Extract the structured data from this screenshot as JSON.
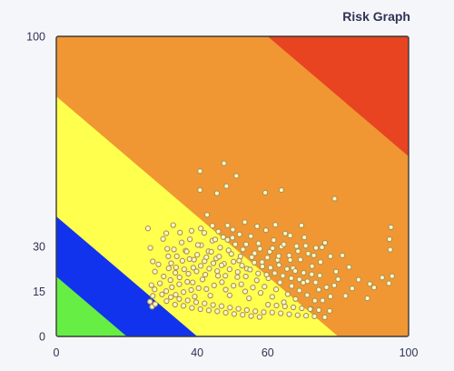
{
  "app": {
    "title": "Risk Graph"
  },
  "chart_data": {
    "type": "scatter",
    "title": "Risk Graph",
    "xlabel": "",
    "ylabel": "",
    "xlim": [
      0,
      100
    ],
    "ylim": [
      0,
      100
    ],
    "x_ticks": [
      "0",
      "40",
      "60",
      "100"
    ],
    "y_ticks": [
      "0",
      "15",
      "30",
      "100"
    ],
    "x_tick_values": [
      0,
      40,
      60,
      100
    ],
    "y_tick_values": [
      0,
      15,
      30,
      100
    ],
    "grid": false,
    "background_zones": [
      {
        "name": "green",
        "color": "#66ee44",
        "upper_sum": 20
      },
      {
        "name": "blue",
        "color": "#1133ee",
        "upper_sum": 40
      },
      {
        "name": "yellow",
        "color": "#ffff4d",
        "upper_sum": 80
      },
      {
        "name": "orange",
        "color": "#f09733",
        "upper_sum": 160
      },
      {
        "name": "red",
        "color": "#e84422",
        "upper_sum": 200
      }
    ],
    "marker_color": "#fff6c8",
    "marker_edge": "#a7924f",
    "points": [
      [
        40.8,
        55.1
      ],
      [
        47.6,
        57.7
      ],
      [
        51.1,
        53.5
      ],
      [
        48.3,
        50.1
      ],
      [
        40.8,
        48.8
      ],
      [
        45.6,
        47.7
      ],
      [
        59.3,
        47.9
      ],
      [
        63.9,
        48.8
      ],
      [
        79.0,
        45.9
      ],
      [
        42.8,
        40.5
      ],
      [
        26.0,
        36.0
      ],
      [
        26.7,
        29.5
      ],
      [
        27.4,
        25.0
      ],
      [
        28.0,
        21.6
      ],
      [
        27.9,
        15.7
      ],
      [
        27.0,
        17.1
      ],
      [
        27.4,
        13.5
      ],
      [
        26.6,
        11.6
      ],
      [
        27.2,
        9.9
      ],
      [
        28.1,
        10.8
      ],
      [
        29.4,
        17.7
      ],
      [
        31.2,
        15.1
      ],
      [
        32.8,
        16.4
      ],
      [
        33.9,
        13.9
      ],
      [
        34.9,
        17.4
      ],
      [
        36.1,
        14.8
      ],
      [
        37.2,
        18.2
      ],
      [
        38.3,
        15.5
      ],
      [
        39.3,
        13.3
      ],
      [
        40.4,
        16.1
      ],
      [
        41.5,
        19.0
      ],
      [
        42.6,
        15.8
      ],
      [
        43.7,
        13.6
      ],
      [
        44.8,
        17.0
      ],
      [
        45.9,
        20.2
      ],
      [
        47.0,
        18.1
      ],
      [
        48.1,
        15.6
      ],
      [
        49.2,
        13.7
      ],
      [
        50.3,
        16.9
      ],
      [
        51.4,
        19.8
      ],
      [
        52.5,
        17.4
      ],
      [
        53.6,
        15.0
      ],
      [
        54.7,
        12.7
      ],
      [
        55.8,
        16.3
      ],
      [
        56.9,
        18.7
      ],
      [
        58.0,
        14.5
      ],
      [
        59.1,
        16.6
      ],
      [
        60.2,
        19.4
      ],
      [
        61.3,
        13.2
      ],
      [
        62.4,
        15.7
      ],
      [
        63.5,
        18.0
      ],
      [
        64.6,
        11.4
      ],
      [
        65.7,
        14.1
      ],
      [
        66.8,
        16.8
      ],
      [
        67.9,
        12.5
      ],
      [
        69.0,
        15.3
      ],
      [
        70.1,
        17.9
      ],
      [
        71.2,
        13.8
      ],
      [
        72.3,
        9.2
      ],
      [
        73.4,
        11.9
      ],
      [
        74.5,
        15.6
      ],
      [
        75.6,
        12.0
      ],
      [
        76.7,
        16.4
      ],
      [
        77.8,
        13.3
      ],
      [
        78.9,
        17.0
      ],
      [
        80.0,
        19.1
      ],
      [
        82.1,
        13.5
      ],
      [
        84.0,
        16.0
      ],
      [
        85.8,
        18.9
      ],
      [
        88.3,
        12.7
      ],
      [
        90.2,
        16.3
      ],
      [
        92.5,
        19.6
      ],
      [
        94.4,
        17.7
      ],
      [
        95.3,
        20.1
      ],
      [
        94.8,
        28.9
      ],
      [
        94.6,
        32.4
      ],
      [
        95.0,
        36.4
      ],
      [
        89.0,
        17.5
      ],
      [
        30.3,
        32.5
      ],
      [
        31.5,
        29.2
      ],
      [
        32.6,
        24.4
      ],
      [
        33.4,
        29.0
      ],
      [
        34.2,
        26.7
      ],
      [
        35.6,
        31.3
      ],
      [
        36.7,
        28.6
      ],
      [
        37.8,
        25.8
      ],
      [
        38.9,
        22.9
      ],
      [
        40.0,
        27.2
      ],
      [
        41.1,
        30.4
      ],
      [
        42.1,
        25.1
      ],
      [
        43.2,
        28.4
      ],
      [
        44.3,
        31.9
      ],
      [
        45.4,
        26.0
      ],
      [
        46.5,
        29.6
      ],
      [
        47.6,
        24.2
      ],
      [
        48.6,
        32.2
      ],
      [
        49.7,
        27.5
      ],
      [
        50.8,
        30.7
      ],
      [
        51.9,
        25.3
      ],
      [
        53.0,
        29.0
      ],
      [
        54.1,
        22.6
      ],
      [
        55.2,
        33.4
      ],
      [
        56.3,
        27.7
      ],
      [
        57.4,
        31.0
      ],
      [
        58.4,
        24.8
      ],
      [
        59.5,
        35.4
      ],
      [
        60.6,
        28.2
      ],
      [
        61.7,
        32.1
      ],
      [
        62.8,
        25.5
      ],
      [
        63.9,
        29.9
      ],
      [
        65.0,
        34.3
      ],
      [
        66.1,
        27.0
      ],
      [
        67.2,
        22.8
      ],
      [
        68.2,
        30.1
      ],
      [
        69.3,
        25.6
      ],
      [
        70.4,
        33.0
      ],
      [
        71.5,
        27.6
      ],
      [
        72.6,
        23.4
      ],
      [
        73.7,
        29.5
      ],
      [
        75.0,
        24.8
      ],
      [
        76.3,
        31.2
      ],
      [
        77.8,
        26.7
      ],
      [
        79.4,
        21.6
      ],
      [
        81.2,
        27.0
      ],
      [
        83.1,
        23.1
      ],
      [
        69.6,
        37.0
      ],
      [
        66.4,
        33.6
      ],
      [
        62.2,
        37.2
      ],
      [
        57.0,
        36.7
      ],
      [
        53.5,
        38.1
      ],
      [
        50.1,
        35.6
      ],
      [
        48.6,
        37.0
      ],
      [
        44.3,
        36.9
      ],
      [
        41.0,
        36.0
      ],
      [
        37.9,
        32.4
      ],
      [
        35.1,
        34.6
      ],
      [
        33.2,
        37.1
      ],
      [
        31.2,
        34.4
      ],
      [
        29.0,
        24.0
      ],
      [
        30.5,
        20.0
      ],
      [
        31.9,
        22.7
      ],
      [
        32.4,
        18.8
      ],
      [
        33.8,
        21.2
      ],
      [
        35.0,
        19.7
      ],
      [
        36.3,
        22.4
      ],
      [
        37.5,
        20.9
      ],
      [
        38.7,
        18.0
      ],
      [
        39.8,
        21.7
      ],
      [
        41.0,
        23.5
      ],
      [
        42.3,
        20.6
      ],
      [
        43.4,
        22.6
      ],
      [
        44.6,
        24.4
      ],
      [
        45.7,
        21.8
      ],
      [
        46.9,
        23.7
      ],
      [
        48.0,
        20.2
      ],
      [
        49.2,
        22.4
      ],
      [
        50.3,
        24.9
      ],
      [
        51.5,
        21.5
      ],
      [
        52.7,
        23.6
      ],
      [
        53.8,
        20.0
      ],
      [
        55.0,
        22.3
      ],
      [
        56.2,
        24.6
      ],
      [
        57.3,
        21.0
      ],
      [
        58.5,
        23.3
      ],
      [
        59.7,
        20.6
      ],
      [
        60.8,
        22.9
      ],
      [
        62.0,
        21.1
      ],
      [
        63.2,
        23.8
      ],
      [
        64.3,
        20.2
      ],
      [
        65.5,
        22.5
      ],
      [
        66.7,
        19.4
      ],
      [
        67.8,
        21.8
      ],
      [
        69.0,
        19.0
      ],
      [
        70.2,
        21.2
      ],
      [
        71.3,
        18.4
      ],
      [
        72.5,
        20.7
      ],
      [
        73.6,
        18.0
      ],
      [
        74.8,
        20.3
      ],
      [
        30.0,
        14.0
      ],
      [
        31.3,
        11.8
      ],
      [
        32.5,
        13.1
      ],
      [
        33.7,
        10.6
      ],
      [
        34.9,
        12.5
      ],
      [
        36.1,
        10.2
      ],
      [
        37.3,
        12.0
      ],
      [
        38.5,
        9.5
      ],
      [
        39.7,
        11.4
      ],
      [
        40.9,
        9.1
      ],
      [
        42.1,
        11.0
      ],
      [
        43.3,
        8.7
      ],
      [
        44.5,
        10.5
      ],
      [
        45.7,
        8.4
      ],
      [
        46.9,
        10.1
      ],
      [
        48.1,
        7.9
      ],
      [
        49.3,
        9.6
      ],
      [
        50.5,
        7.5
      ],
      [
        51.7,
        9.2
      ],
      [
        52.9,
        7.2
      ],
      [
        54.1,
        8.8
      ],
      [
        55.3,
        6.8
      ],
      [
        56.5,
        8.4
      ],
      [
        57.7,
        6.5
      ],
      [
        58.9,
        8.1
      ],
      [
        60.1,
        10.6
      ],
      [
        61.3,
        8.0
      ],
      [
        62.5,
        10.3
      ],
      [
        63.7,
        7.7
      ],
      [
        64.9,
        10.0
      ],
      [
        66.1,
        7.4
      ],
      [
        67.3,
        9.7
      ],
      [
        68.5,
        7.1
      ],
      [
        69.7,
        9.4
      ],
      [
        70.9,
        6.9
      ],
      [
        72.1,
        9.1
      ],
      [
        73.3,
        6.7
      ],
      [
        74.5,
        8.8
      ],
      [
        76.2,
        6.4
      ],
      [
        77.6,
        8.5
      ],
      [
        42.6,
        26.4
      ],
      [
        44.0,
        28.2
      ],
      [
        45.1,
        32.3
      ],
      [
        46.2,
        26.6
      ],
      [
        47.4,
        33.1
      ],
      [
        48.9,
        28.7
      ],
      [
        50.0,
        32.9
      ],
      [
        52.3,
        26.7
      ],
      [
        53.9,
        30.7
      ],
      [
        55.5,
        26.4
      ],
      [
        57.8,
        29.2
      ],
      [
        59.9,
        26.3
      ],
      [
        61.4,
        29.4
      ],
      [
        63.1,
        26.8
      ],
      [
        64.6,
        30.7
      ],
      [
        66.4,
        25.5
      ],
      [
        68.6,
        28.4
      ],
      [
        70.8,
        30.2
      ],
      [
        73.1,
        27.0
      ],
      [
        75.4,
        29.7
      ],
      [
        39.1,
        25.6
      ],
      [
        37.0,
        28.3
      ],
      [
        35.8,
        25.2
      ],
      [
        34.0,
        23.0
      ],
      [
        31.8,
        26.7
      ],
      [
        40.2,
        30.5
      ],
      [
        38.4,
        35.2
      ],
      [
        42.0,
        34.5
      ],
      [
        46.0,
        35.0
      ],
      [
        52.0,
        34.0
      ]
    ]
  }
}
